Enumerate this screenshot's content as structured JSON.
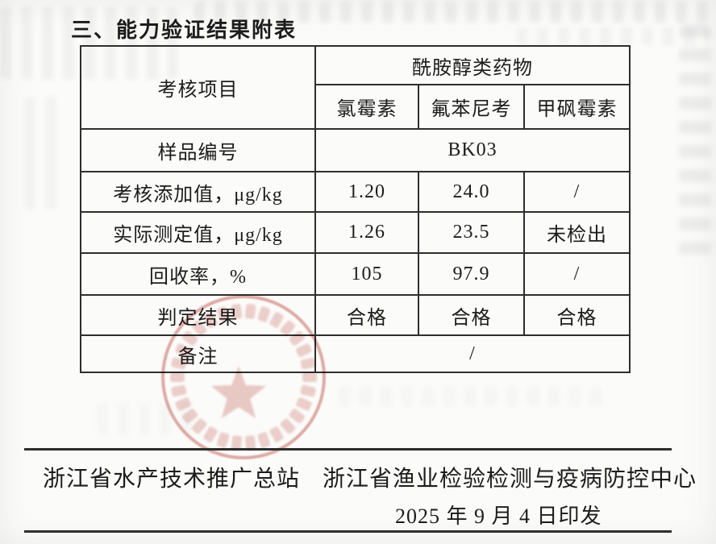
{
  "page": {
    "title": "三、能力验证结果附表"
  },
  "table": {
    "header": {
      "item_label": "考核项目",
      "group_label": "酰胺醇类药物",
      "drugs": [
        "氯霉素",
        "氟苯尼考",
        "甲砜霉素"
      ]
    },
    "rows": [
      {
        "label": "样品编号",
        "merged": true,
        "value": "BK03"
      },
      {
        "label": "考核添加值，μg/kg",
        "values": [
          "1.20",
          "24.0",
          "/"
        ]
      },
      {
        "label": "实际测定值，μg/kg",
        "values": [
          "1.26",
          "23.5",
          "未检出"
        ]
      },
      {
        "label": "回收率，%",
        "values": [
          "105",
          "97.9",
          "/"
        ]
      },
      {
        "label": "判定结果",
        "values": [
          "合格",
          "合格",
          "合格"
        ]
      },
      {
        "label": "备注",
        "merged": true,
        "value": "/"
      }
    ]
  },
  "footer": {
    "org_left": "浙江省水产技术推广总站",
    "org_right": "浙江省渔业检验检测与疫病防控中心",
    "date_line": "2025 年 9 月 4 日印发"
  },
  "colors": {
    "paper": "#fbfbf9",
    "ink": "#1c1c1c",
    "line": "#2e2e2e",
    "seal_red": "#c96a62"
  }
}
